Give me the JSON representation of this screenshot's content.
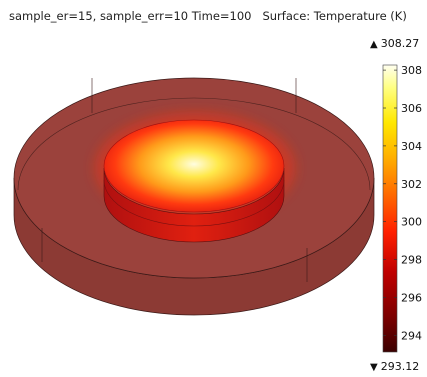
{
  "plot": {
    "title": "sample_er=15, sample_err=10 Time=100   Surface: Temperature (K)"
  },
  "colorbar": {
    "max_label": "308.27",
    "min_label": "293.12",
    "min": 293.12,
    "max": 308.27,
    "ticks": [
      "308",
      "306",
      "304",
      "302",
      "300",
      "298",
      "296",
      "294"
    ],
    "tick_values": [
      308,
      306,
      304,
      302,
      300,
      298,
      296,
      294
    ],
    "colormap": "heat",
    "stops": [
      "#3a0000",
      "#7a0000",
      "#c00000",
      "#ff2000",
      "#ff6a00",
      "#ffb000",
      "#ffe800",
      "#ffff80",
      "#fffff0"
    ]
  },
  "colors": {
    "outer_disk": "#9b423c",
    "outer_disk_side": "#8c3a34",
    "edge_lines": "#3b1a18"
  }
}
